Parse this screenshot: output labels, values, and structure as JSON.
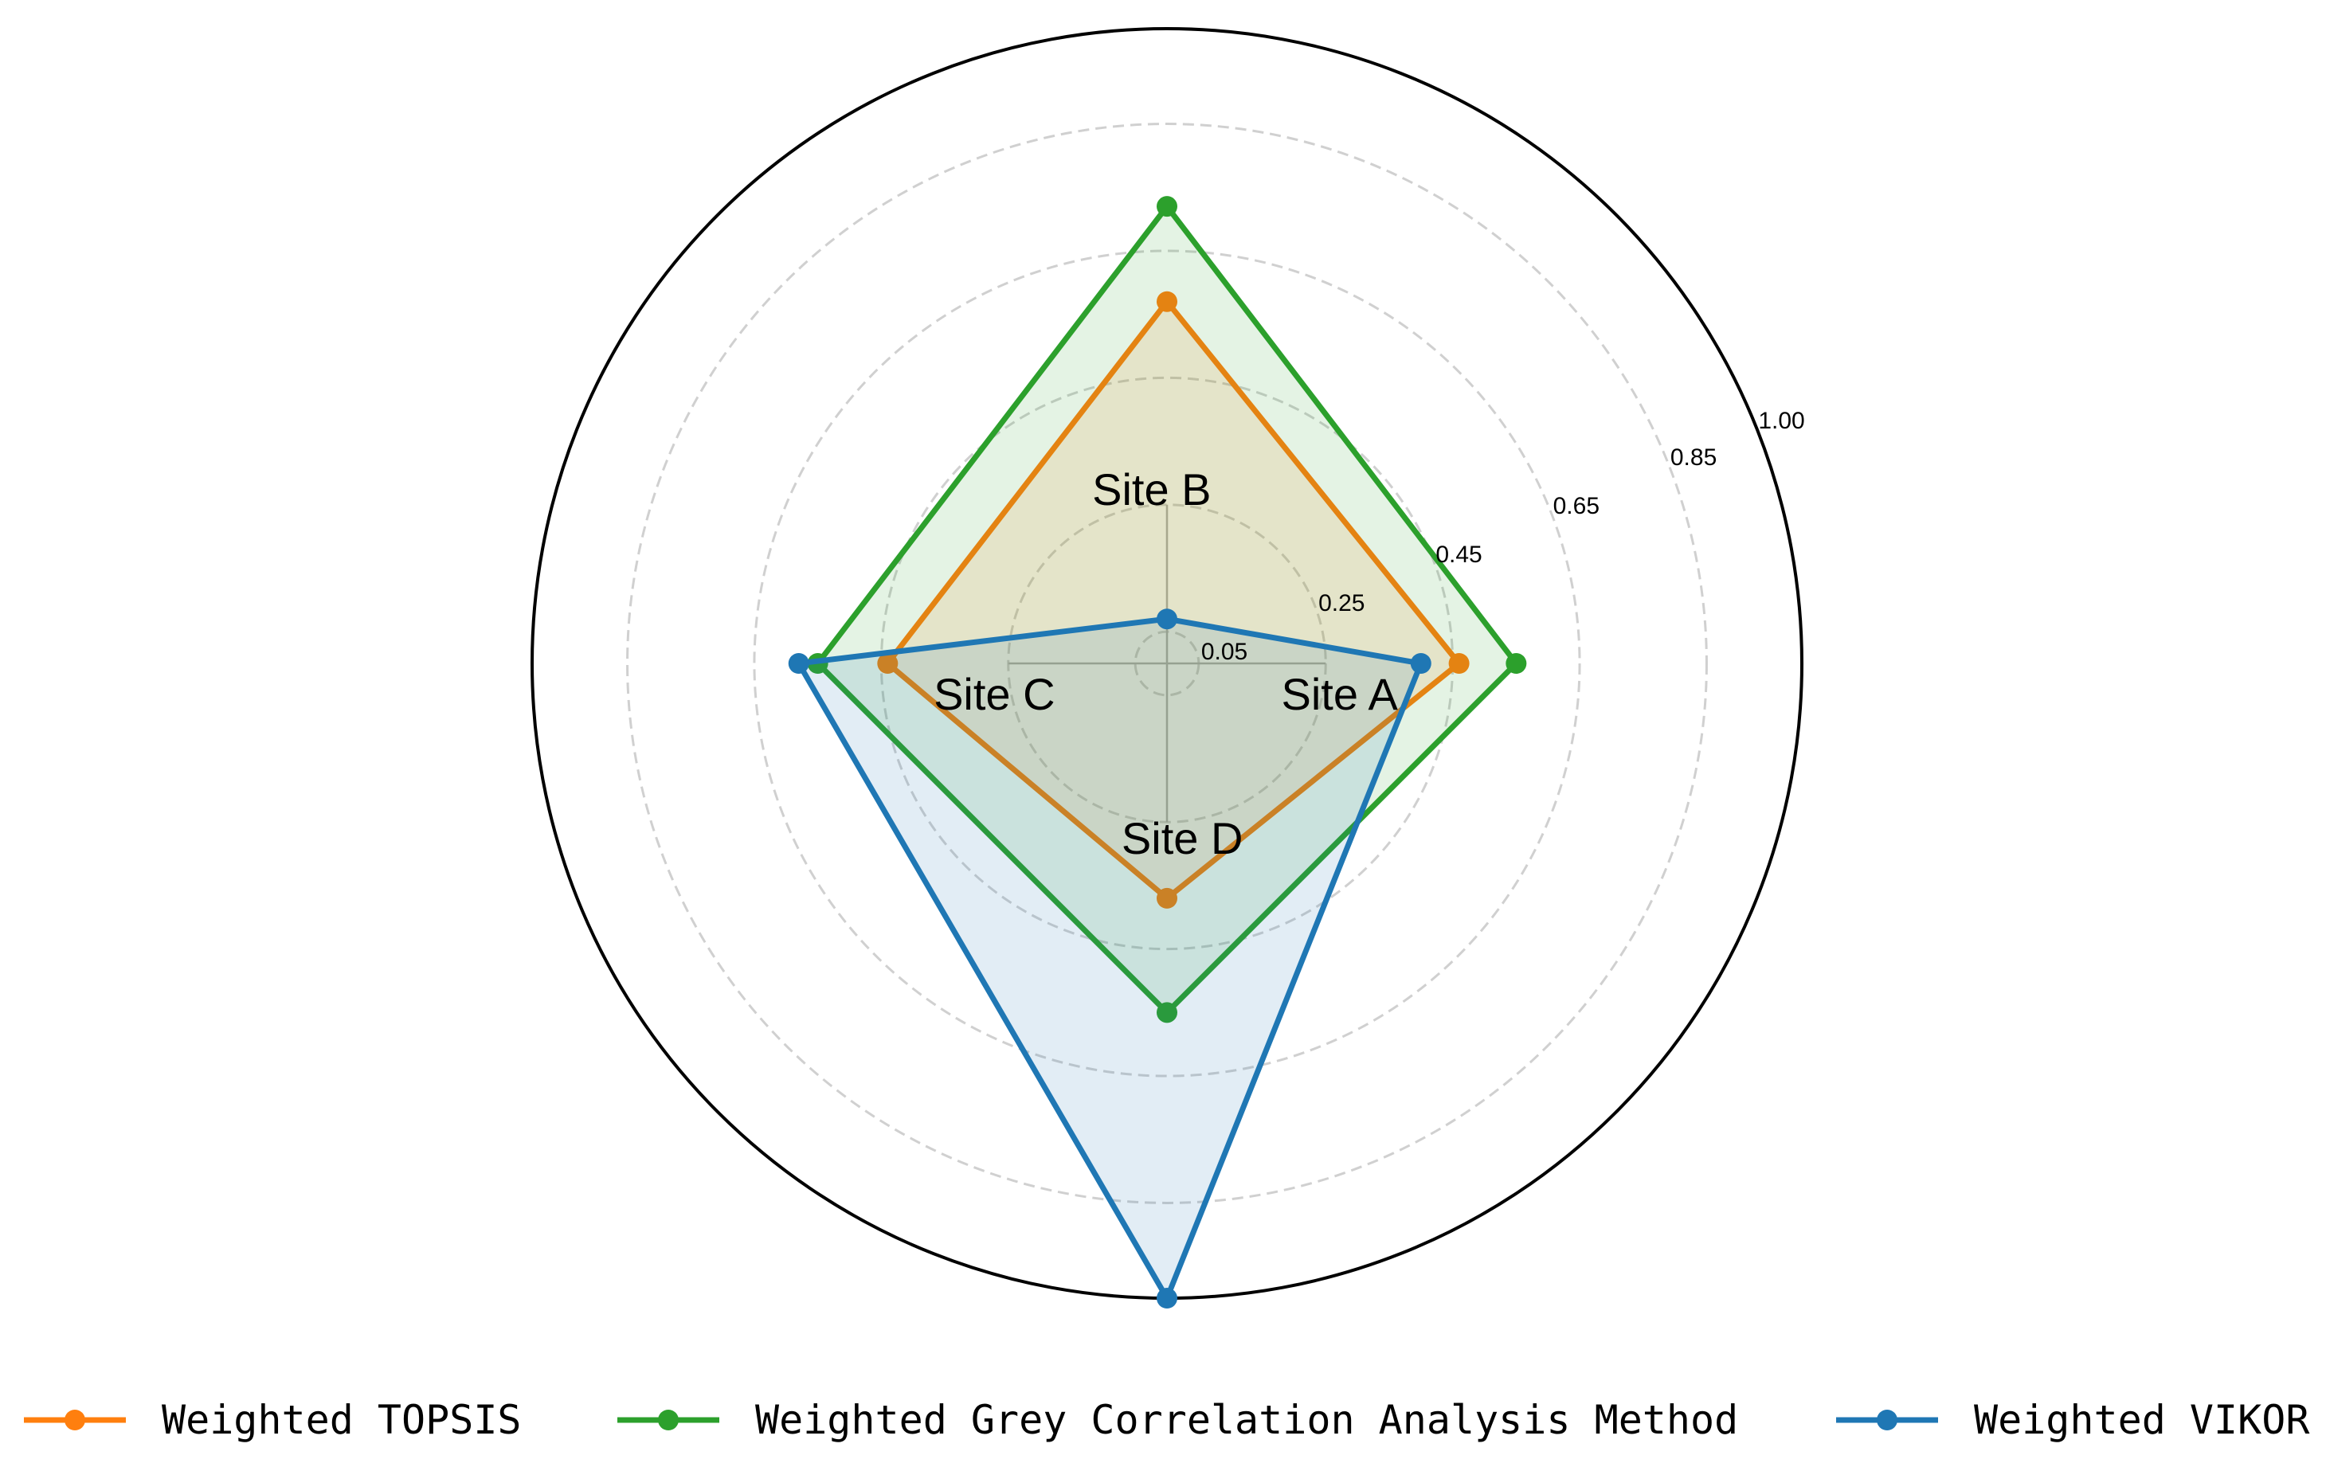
{
  "chart_data": {
    "type": "radar",
    "title": "",
    "axes": [
      "Site A",
      "Site B",
      "Site C",
      "Site D"
    ],
    "rlim": [
      0,
      1.0
    ],
    "radial_ticks": [
      0.05,
      0.25,
      0.45,
      0.65,
      0.85,
      1.0
    ],
    "radial_tick_labels": [
      "0.05",
      "0.25",
      "0.45",
      "0.65",
      "0.85",
      "1.00"
    ],
    "grid": "dashed circles",
    "legend_position": "bottom",
    "series": [
      {
        "name": "Weighted TOPSIS",
        "color": "#ff7f0e",
        "values": [
          0.46,
          0.57,
          0.44,
          0.37
        ]
      },
      {
        "name": "Weighted Grey Correlation Analysis Method",
        "color": "#2ca02c",
        "values": [
          0.55,
          0.72,
          0.55,
          0.55
        ]
      },
      {
        "name": "Weighted VIKOR",
        "color": "#1f77b4",
        "values": [
          0.4,
          0.07,
          0.58,
          1.0
        ]
      }
    ]
  }
}
